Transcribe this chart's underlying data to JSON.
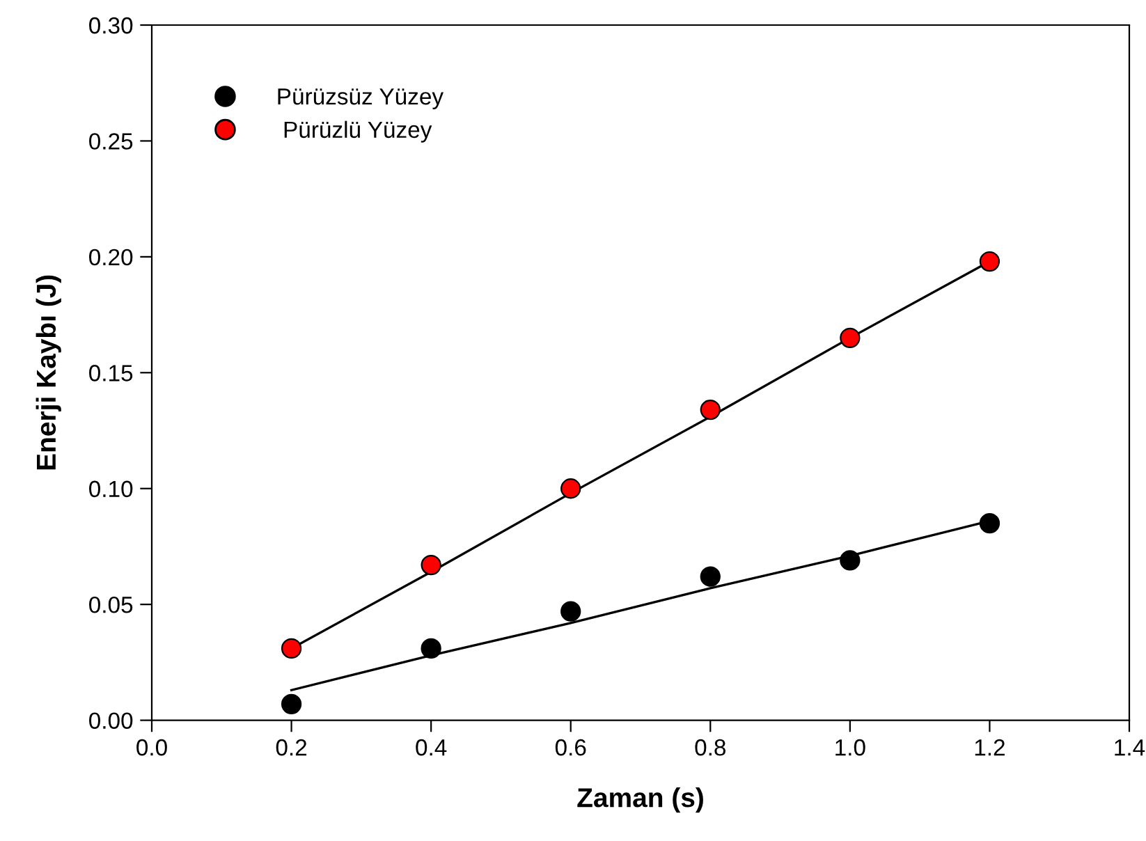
{
  "chart_data": {
    "type": "scatter",
    "xlabel": "Zaman (s)",
    "ylabel": "Enerji Kaybı (J)",
    "x": [
      0.2,
      0.4,
      0.6,
      0.8,
      1.0,
      1.2
    ],
    "series": [
      {
        "name": "Pürüzsüz Yüzey",
        "color": "#000000",
        "values": [
          0.007,
          0.031,
          0.047,
          0.062,
          0.069,
          0.085
        ]
      },
      {
        "name": " Pürüzlü Yüzey",
        "color": "#ff0000",
        "values": [
          0.031,
          0.067,
          0.1,
          0.134,
          0.165,
          0.198
        ]
      },
      {
        "type": "line",
        "marker": "none",
        "color": "#000000",
        "values": [
          0.013,
          0.028,
          0.042,
          0.057,
          0.071,
          0.086
        ]
      },
      {
        "type": "line",
        "marker": "none",
        "color": "#000000",
        "values": [
          0.031,
          0.064,
          0.098,
          0.131,
          0.165,
          0.198
        ]
      }
    ],
    "xlim": [
      0.0,
      1.4
    ],
    "xticks": [
      {
        "value": 0.0,
        "label": "0.0"
      },
      {
        "value": 0.2,
        "label": "0.2"
      },
      {
        "value": 0.4,
        "label": "0.4"
      },
      {
        "value": 0.6,
        "label": "0.6"
      },
      {
        "value": 0.8,
        "label": "0.8"
      },
      {
        "value": 1.0,
        "label": "1.0"
      },
      {
        "value": 1.2,
        "label": "1.2"
      },
      {
        "value": 1.4,
        "label": "1.4"
      }
    ],
    "ylim": [
      0.0,
      0.3
    ],
    "yticks": [
      {
        "value": 0.0,
        "label": "0.00"
      },
      {
        "value": 0.05,
        "label": "0.05"
      },
      {
        "value": 0.1,
        "label": "0.10"
      },
      {
        "value": 0.15,
        "label": "0.15"
      },
      {
        "value": 0.2,
        "label": "0.20"
      },
      {
        "value": 0.25,
        "label": "0.25"
      },
      {
        "value": 0.3,
        "label": "0.30"
      }
    ],
    "marker": "circle",
    "legend": "top left",
    "grid": false
  }
}
